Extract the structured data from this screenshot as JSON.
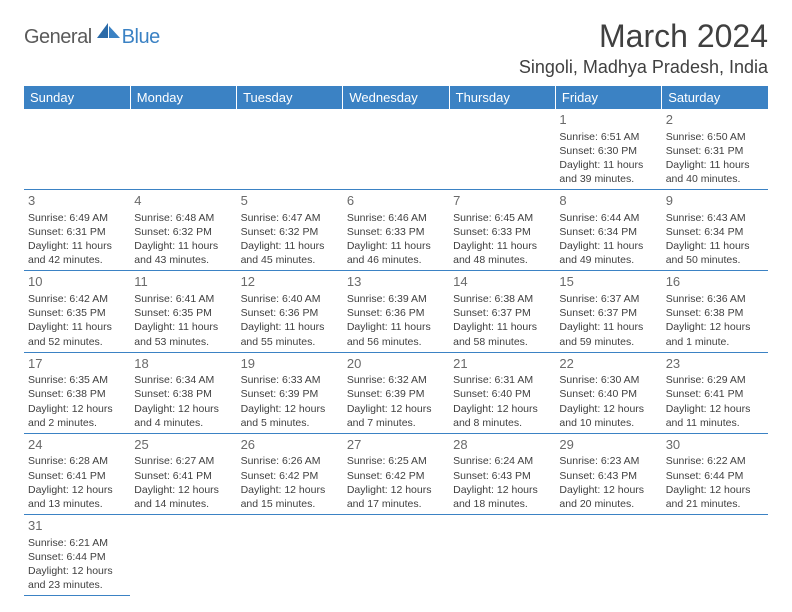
{
  "logo": {
    "text1": "General",
    "text2": "Blue"
  },
  "title": "March 2024",
  "location": "Singoli, Madhya Pradesh, India",
  "colors": {
    "header_bg": "#3b82c4",
    "header_text": "#ffffff",
    "body_text": "#404040",
    "daynum": "#6a6a6a",
    "logo_gray": "#5a5a5a",
    "logo_blue": "#3b82c4",
    "border": "#3b82c4",
    "background": "#ffffff"
  },
  "typography": {
    "title_size": 32,
    "location_size": 18,
    "dayheader_size": 13,
    "daynum_size": 13,
    "cell_size": 10.5
  },
  "day_headers": [
    "Sunday",
    "Monday",
    "Tuesday",
    "Wednesday",
    "Thursday",
    "Friday",
    "Saturday"
  ],
  "weeks": [
    [
      null,
      null,
      null,
      null,
      null,
      {
        "n": "1",
        "sr": "Sunrise: 6:51 AM",
        "ss": "Sunset: 6:30 PM",
        "dl1": "Daylight: 11 hours",
        "dl2": "and 39 minutes."
      },
      {
        "n": "2",
        "sr": "Sunrise: 6:50 AM",
        "ss": "Sunset: 6:31 PM",
        "dl1": "Daylight: 11 hours",
        "dl2": "and 40 minutes."
      }
    ],
    [
      {
        "n": "3",
        "sr": "Sunrise: 6:49 AM",
        "ss": "Sunset: 6:31 PM",
        "dl1": "Daylight: 11 hours",
        "dl2": "and 42 minutes."
      },
      {
        "n": "4",
        "sr": "Sunrise: 6:48 AM",
        "ss": "Sunset: 6:32 PM",
        "dl1": "Daylight: 11 hours",
        "dl2": "and 43 minutes."
      },
      {
        "n": "5",
        "sr": "Sunrise: 6:47 AM",
        "ss": "Sunset: 6:32 PM",
        "dl1": "Daylight: 11 hours",
        "dl2": "and 45 minutes."
      },
      {
        "n": "6",
        "sr": "Sunrise: 6:46 AM",
        "ss": "Sunset: 6:33 PM",
        "dl1": "Daylight: 11 hours",
        "dl2": "and 46 minutes."
      },
      {
        "n": "7",
        "sr": "Sunrise: 6:45 AM",
        "ss": "Sunset: 6:33 PM",
        "dl1": "Daylight: 11 hours",
        "dl2": "and 48 minutes."
      },
      {
        "n": "8",
        "sr": "Sunrise: 6:44 AM",
        "ss": "Sunset: 6:34 PM",
        "dl1": "Daylight: 11 hours",
        "dl2": "and 49 minutes."
      },
      {
        "n": "9",
        "sr": "Sunrise: 6:43 AM",
        "ss": "Sunset: 6:34 PM",
        "dl1": "Daylight: 11 hours",
        "dl2": "and 50 minutes."
      }
    ],
    [
      {
        "n": "10",
        "sr": "Sunrise: 6:42 AM",
        "ss": "Sunset: 6:35 PM",
        "dl1": "Daylight: 11 hours",
        "dl2": "and 52 minutes."
      },
      {
        "n": "11",
        "sr": "Sunrise: 6:41 AM",
        "ss": "Sunset: 6:35 PM",
        "dl1": "Daylight: 11 hours",
        "dl2": "and 53 minutes."
      },
      {
        "n": "12",
        "sr": "Sunrise: 6:40 AM",
        "ss": "Sunset: 6:36 PM",
        "dl1": "Daylight: 11 hours",
        "dl2": "and 55 minutes."
      },
      {
        "n": "13",
        "sr": "Sunrise: 6:39 AM",
        "ss": "Sunset: 6:36 PM",
        "dl1": "Daylight: 11 hours",
        "dl2": "and 56 minutes."
      },
      {
        "n": "14",
        "sr": "Sunrise: 6:38 AM",
        "ss": "Sunset: 6:37 PM",
        "dl1": "Daylight: 11 hours",
        "dl2": "and 58 minutes."
      },
      {
        "n": "15",
        "sr": "Sunrise: 6:37 AM",
        "ss": "Sunset: 6:37 PM",
        "dl1": "Daylight: 11 hours",
        "dl2": "and 59 minutes."
      },
      {
        "n": "16",
        "sr": "Sunrise: 6:36 AM",
        "ss": "Sunset: 6:38 PM",
        "dl1": "Daylight: 12 hours",
        "dl2": "and 1 minute."
      }
    ],
    [
      {
        "n": "17",
        "sr": "Sunrise: 6:35 AM",
        "ss": "Sunset: 6:38 PM",
        "dl1": "Daylight: 12 hours",
        "dl2": "and 2 minutes."
      },
      {
        "n": "18",
        "sr": "Sunrise: 6:34 AM",
        "ss": "Sunset: 6:38 PM",
        "dl1": "Daylight: 12 hours",
        "dl2": "and 4 minutes."
      },
      {
        "n": "19",
        "sr": "Sunrise: 6:33 AM",
        "ss": "Sunset: 6:39 PM",
        "dl1": "Daylight: 12 hours",
        "dl2": "and 5 minutes."
      },
      {
        "n": "20",
        "sr": "Sunrise: 6:32 AM",
        "ss": "Sunset: 6:39 PM",
        "dl1": "Daylight: 12 hours",
        "dl2": "and 7 minutes."
      },
      {
        "n": "21",
        "sr": "Sunrise: 6:31 AM",
        "ss": "Sunset: 6:40 PM",
        "dl1": "Daylight: 12 hours",
        "dl2": "and 8 minutes."
      },
      {
        "n": "22",
        "sr": "Sunrise: 6:30 AM",
        "ss": "Sunset: 6:40 PM",
        "dl1": "Daylight: 12 hours",
        "dl2": "and 10 minutes."
      },
      {
        "n": "23",
        "sr": "Sunrise: 6:29 AM",
        "ss": "Sunset: 6:41 PM",
        "dl1": "Daylight: 12 hours",
        "dl2": "and 11 minutes."
      }
    ],
    [
      {
        "n": "24",
        "sr": "Sunrise: 6:28 AM",
        "ss": "Sunset: 6:41 PM",
        "dl1": "Daylight: 12 hours",
        "dl2": "and 13 minutes."
      },
      {
        "n": "25",
        "sr": "Sunrise: 6:27 AM",
        "ss": "Sunset: 6:41 PM",
        "dl1": "Daylight: 12 hours",
        "dl2": "and 14 minutes."
      },
      {
        "n": "26",
        "sr": "Sunrise: 6:26 AM",
        "ss": "Sunset: 6:42 PM",
        "dl1": "Daylight: 12 hours",
        "dl2": "and 15 minutes."
      },
      {
        "n": "27",
        "sr": "Sunrise: 6:25 AM",
        "ss": "Sunset: 6:42 PM",
        "dl1": "Daylight: 12 hours",
        "dl2": "and 17 minutes."
      },
      {
        "n": "28",
        "sr": "Sunrise: 6:24 AM",
        "ss": "Sunset: 6:43 PM",
        "dl1": "Daylight: 12 hours",
        "dl2": "and 18 minutes."
      },
      {
        "n": "29",
        "sr": "Sunrise: 6:23 AM",
        "ss": "Sunset: 6:43 PM",
        "dl1": "Daylight: 12 hours",
        "dl2": "and 20 minutes."
      },
      {
        "n": "30",
        "sr": "Sunrise: 6:22 AM",
        "ss": "Sunset: 6:44 PM",
        "dl1": "Daylight: 12 hours",
        "dl2": "and 21 minutes."
      }
    ],
    [
      {
        "n": "31",
        "sr": "Sunrise: 6:21 AM",
        "ss": "Sunset: 6:44 PM",
        "dl1": "Daylight: 12 hours",
        "dl2": "and 23 minutes."
      },
      null,
      null,
      null,
      null,
      null,
      null
    ]
  ]
}
